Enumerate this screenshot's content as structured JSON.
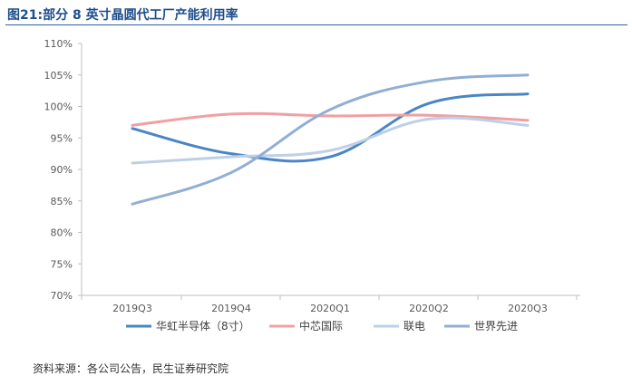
{
  "figure_title": "图21:部分 8 英寸晶圆代工厂产能利用率",
  "source_note": "资料来源：各公司公告，民生证券研究院",
  "colors": {
    "title": "#1f4e8c",
    "axis": "#bfbfbf"
  },
  "chart_data": {
    "type": "line",
    "title": "",
    "xlabel": "",
    "ylabel": "",
    "categories": [
      "2019Q3",
      "2019Q4",
      "2020Q1",
      "2020Q2",
      "2020Q3"
    ],
    "y_ticks": [
      "110%",
      "105%",
      "100%",
      "95%",
      "90%",
      "85%",
      "80%",
      "75%",
      "70%"
    ],
    "ylim": [
      70,
      110
    ],
    "y_unit": "%",
    "grid": false,
    "legend_position": "bottom",
    "series": [
      {
        "name": "华虹半导体（8寸）",
        "color": "#4a86c6",
        "values": [
          96.5,
          92.5,
          92.0,
          100.5,
          102.0
        ]
      },
      {
        "name": "中芯国际",
        "color": "#f0a0a4",
        "values": [
          97.0,
          98.8,
          98.5,
          98.6,
          97.8
        ]
      },
      {
        "name": "联电",
        "color": "#bdd0e6",
        "values": [
          91.0,
          92.0,
          93.0,
          98.0,
          97.0
        ]
      },
      {
        "name": "世界先进",
        "color": "#92aed4",
        "values": [
          84.5,
          89.5,
          99.5,
          104.0,
          105.0
        ]
      }
    ]
  }
}
